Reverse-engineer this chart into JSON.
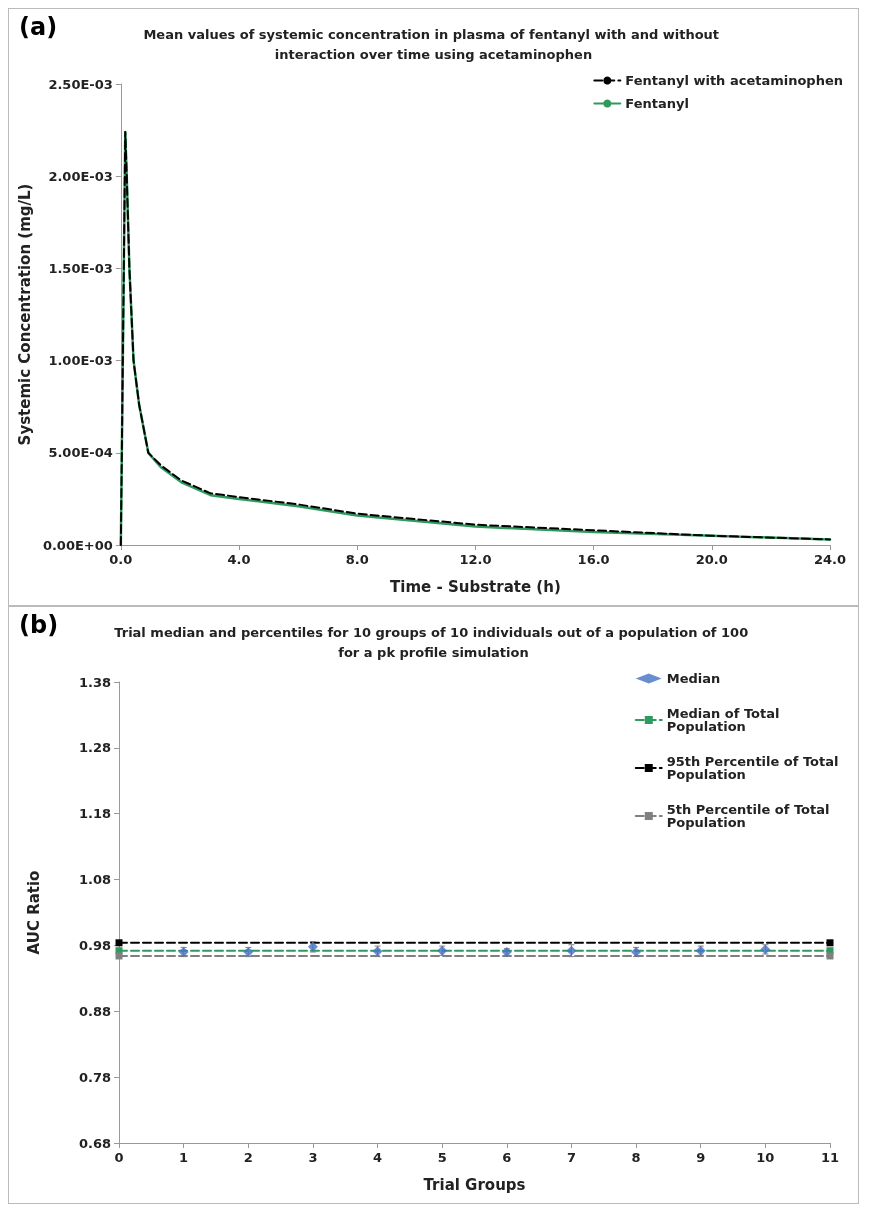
{
  "chart_data": [
    {
      "type": "line",
      "title": "Mean values of systemic concentration in plasma of fentanyl with and without interaction over time using acetaminophen",
      "xlabel": "Time - Substrate (h)",
      "ylabel": "Systemic Concentration (mg/L)",
      "annotations": [
        "(a)"
      ],
      "xlim": [
        0,
        24
      ],
      "xticks": [
        {
          "value": 0,
          "label": "0.0"
        },
        {
          "value": 4,
          "label": "4.0"
        },
        {
          "value": 8,
          "label": "8.0"
        },
        {
          "value": 12,
          "label": "12.0"
        },
        {
          "value": 16,
          "label": "16.0"
        },
        {
          "value": 20,
          "label": "20.0"
        },
        {
          "value": 24,
          "label": "24.0"
        }
      ],
      "ylim": [
        0,
        0.0025
      ],
      "yticks": [
        {
          "value": 0,
          "label": "0.00E+00"
        },
        {
          "value": 0.0005,
          "label": "5.00E-04"
        },
        {
          "value": 0.001,
          "label": "1.00E-03"
        },
        {
          "value": 0.0015,
          "label": "1.50E-03"
        },
        {
          "value": 0.002,
          "label": "2.00E-03"
        },
        {
          "value": 0.0025,
          "label": "2.50E-03"
        }
      ],
      "grid": false,
      "legend": "top right",
      "marker": "none",
      "series": [
        {
          "name": "Fentanyl with acetaminophen",
          "color": "#000000",
          "line_style": "dashed",
          "x": [
            0,
            0.15,
            0.2,
            0.29,
            0.43,
            0.62,
            0.93,
            1.37,
            2.05,
            3.04,
            4,
            6,
            8,
            10,
            12,
            16,
            20,
            24
          ],
          "values": [
            0,
            0.00224,
            0.002,
            0.0015,
            0.001,
            0.00076,
            0.0005,
            0.00043,
            0.00035,
            0.00028,
            0.00026,
            0.00022,
            0.00017,
            0.00014,
            0.00011,
            8e-05,
            5e-05,
            3e-05
          ]
        },
        {
          "name": "Fentanyl",
          "color": "#2e9a5e",
          "line_style": "solid",
          "x": [
            0,
            0.15,
            0.2,
            0.29,
            0.43,
            0.62,
            0.93,
            1.37,
            2.05,
            3.04,
            4,
            6,
            8,
            10,
            12,
            16,
            20,
            24
          ],
          "values": [
            0,
            0.00224,
            0.002,
            0.0015,
            0.001,
            0.00076,
            0.0005,
            0.00042,
            0.00034,
            0.00027,
            0.00025,
            0.00021,
            0.00016,
            0.00013,
            0.0001,
            7e-05,
            5e-05,
            3e-05
          ]
        }
      ]
    },
    {
      "type": "scatter",
      "title": "Trial median and percentiles for 10 groups of 10 individuals out of a population of 100 for a pk profile simulation",
      "xlabel": "Trial Groups",
      "ylabel": "AUC Ratio",
      "annotations": [
        "(b)"
      ],
      "xlim": [
        0,
        11
      ],
      "xticks": [
        0,
        1,
        2,
        3,
        4,
        5,
        6,
        7,
        8,
        9,
        10,
        11
      ],
      "ylim": [
        0.68,
        1.38
      ],
      "yticks": [
        0.68,
        0.78,
        0.88,
        0.98,
        1.08,
        1.18,
        1.28,
        1.38
      ],
      "grid": false,
      "legend": "top right",
      "series": [
        {
          "name": "Median",
          "type": "scatter",
          "marker": "diamond",
          "color": "#4472c4",
          "x": [
            1,
            2,
            3,
            4,
            5,
            6,
            7,
            8,
            9,
            10
          ],
          "values": [
            0.97,
            0.97,
            0.978,
            0.971,
            0.972,
            0.97,
            0.972,
            0.97,
            0.972,
            0.974
          ],
          "errors": [
            0.007,
            0.007,
            0.008,
            0.008,
            0.007,
            0.005,
            0.009,
            0.007,
            0.007,
            0.007
          ]
        },
        {
          "name": "Median of Total Population",
          "type": "line",
          "marker": "square",
          "line_style": "dashed",
          "color": "#2e9a5e",
          "x": [
            0,
            11
          ],
          "values": [
            0.972,
            0.972
          ]
        },
        {
          "name": "95th Percentile of Total Population",
          "type": "line",
          "marker": "square",
          "line_style": "dashed",
          "color": "#000000",
          "x": [
            0,
            11
          ],
          "values": [
            0.984,
            0.984
          ]
        },
        {
          "name": "5th Percentile of Total Population",
          "type": "line",
          "marker": "square",
          "line_style": "dashed",
          "color": "#808080",
          "x": [
            0,
            11
          ],
          "values": [
            0.964,
            0.964
          ]
        }
      ]
    }
  ]
}
